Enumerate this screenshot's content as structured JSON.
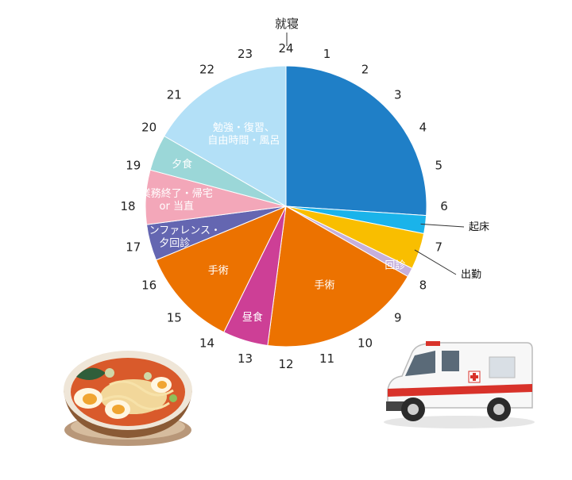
{
  "chart_data": {
    "type": "pie",
    "title": "",
    "top_label": "就寝",
    "hours": [
      "24",
      "1",
      "2",
      "3",
      "4",
      "5",
      "6",
      "7",
      "8",
      "9",
      "10",
      "11",
      "12",
      "13",
      "14",
      "15",
      "16",
      "17",
      "18",
      "19",
      "20",
      "21",
      "22",
      "23"
    ],
    "slices": [
      {
        "key": "sleep",
        "start": 0,
        "end": 6.25,
        "color": "#1f7fc7",
        "label": []
      },
      {
        "key": "wake",
        "start": 6.25,
        "end": 6.75,
        "color": "#1ab3ea",
        "label": []
      },
      {
        "key": "commute",
        "start": 6.75,
        "end": 7.75,
        "color": "#f9be00",
        "label": []
      },
      {
        "key": "rounds",
        "start": 7.75,
        "end": 8.0,
        "color": "#c6b0dc",
        "label": [
          "回診"
        ]
      },
      {
        "key": "surgery_am",
        "start": 8.0,
        "end": 12.5,
        "color": "#ec7200",
        "label": [
          "手術"
        ]
      },
      {
        "key": "lunch",
        "start": 12.5,
        "end": 13.75,
        "color": "#cd3f96",
        "label": [
          "昼食"
        ]
      },
      {
        "key": "surgery_pm",
        "start": 13.75,
        "end": 16.5,
        "color": "#ec7200",
        "label": [
          "手術"
        ]
      },
      {
        "key": "conference",
        "start": 16.5,
        "end": 17.5,
        "color": "#6466b1",
        "label": [
          "タカンファレンス・",
          "夕回診"
        ]
      },
      {
        "key": "off_work",
        "start": 17.5,
        "end": 19.0,
        "color": "#f3a7b9",
        "label": [
          "業務終了・帰宅",
          "or 当直"
        ]
      },
      {
        "key": "dinner",
        "start": 19.0,
        "end": 20.0,
        "color": "#9bd7d8",
        "label": [
          "夕食"
        ]
      },
      {
        "key": "study",
        "start": 20.0,
        "end": 24.0,
        "color": "#b3e0f7",
        "label": [
          "勉強・復習、",
          "自由時間・風呂"
        ]
      }
    ],
    "callouts": [
      {
        "text": "起床",
        "hour": 6.5
      },
      {
        "text": "出勤",
        "hour": 7.25
      }
    ]
  },
  "illustrations": {
    "left": "ramen-bowl",
    "right": "ambulance"
  }
}
